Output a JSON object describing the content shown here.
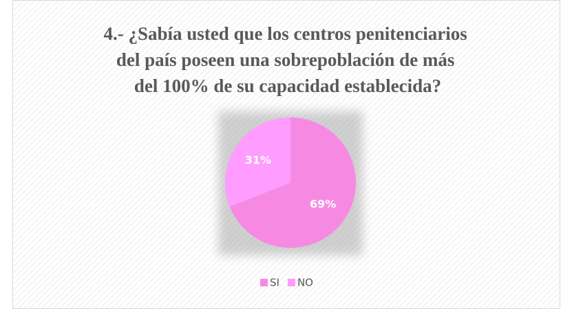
{
  "chart_data": {
    "type": "pie",
    "title": [
      "4.- ¿Sabía usted que los centros penitenciarios",
      "del país poseen una sobrepoblación de más",
      "del 100% de su capacidad establecida?"
    ],
    "categories": [
      "SI",
      "NO"
    ],
    "values": [
      69,
      31
    ],
    "value_labels": [
      "69%",
      "31%"
    ],
    "colors": [
      "#f68ae2",
      "#ff9cff"
    ],
    "legend": "bottom"
  }
}
